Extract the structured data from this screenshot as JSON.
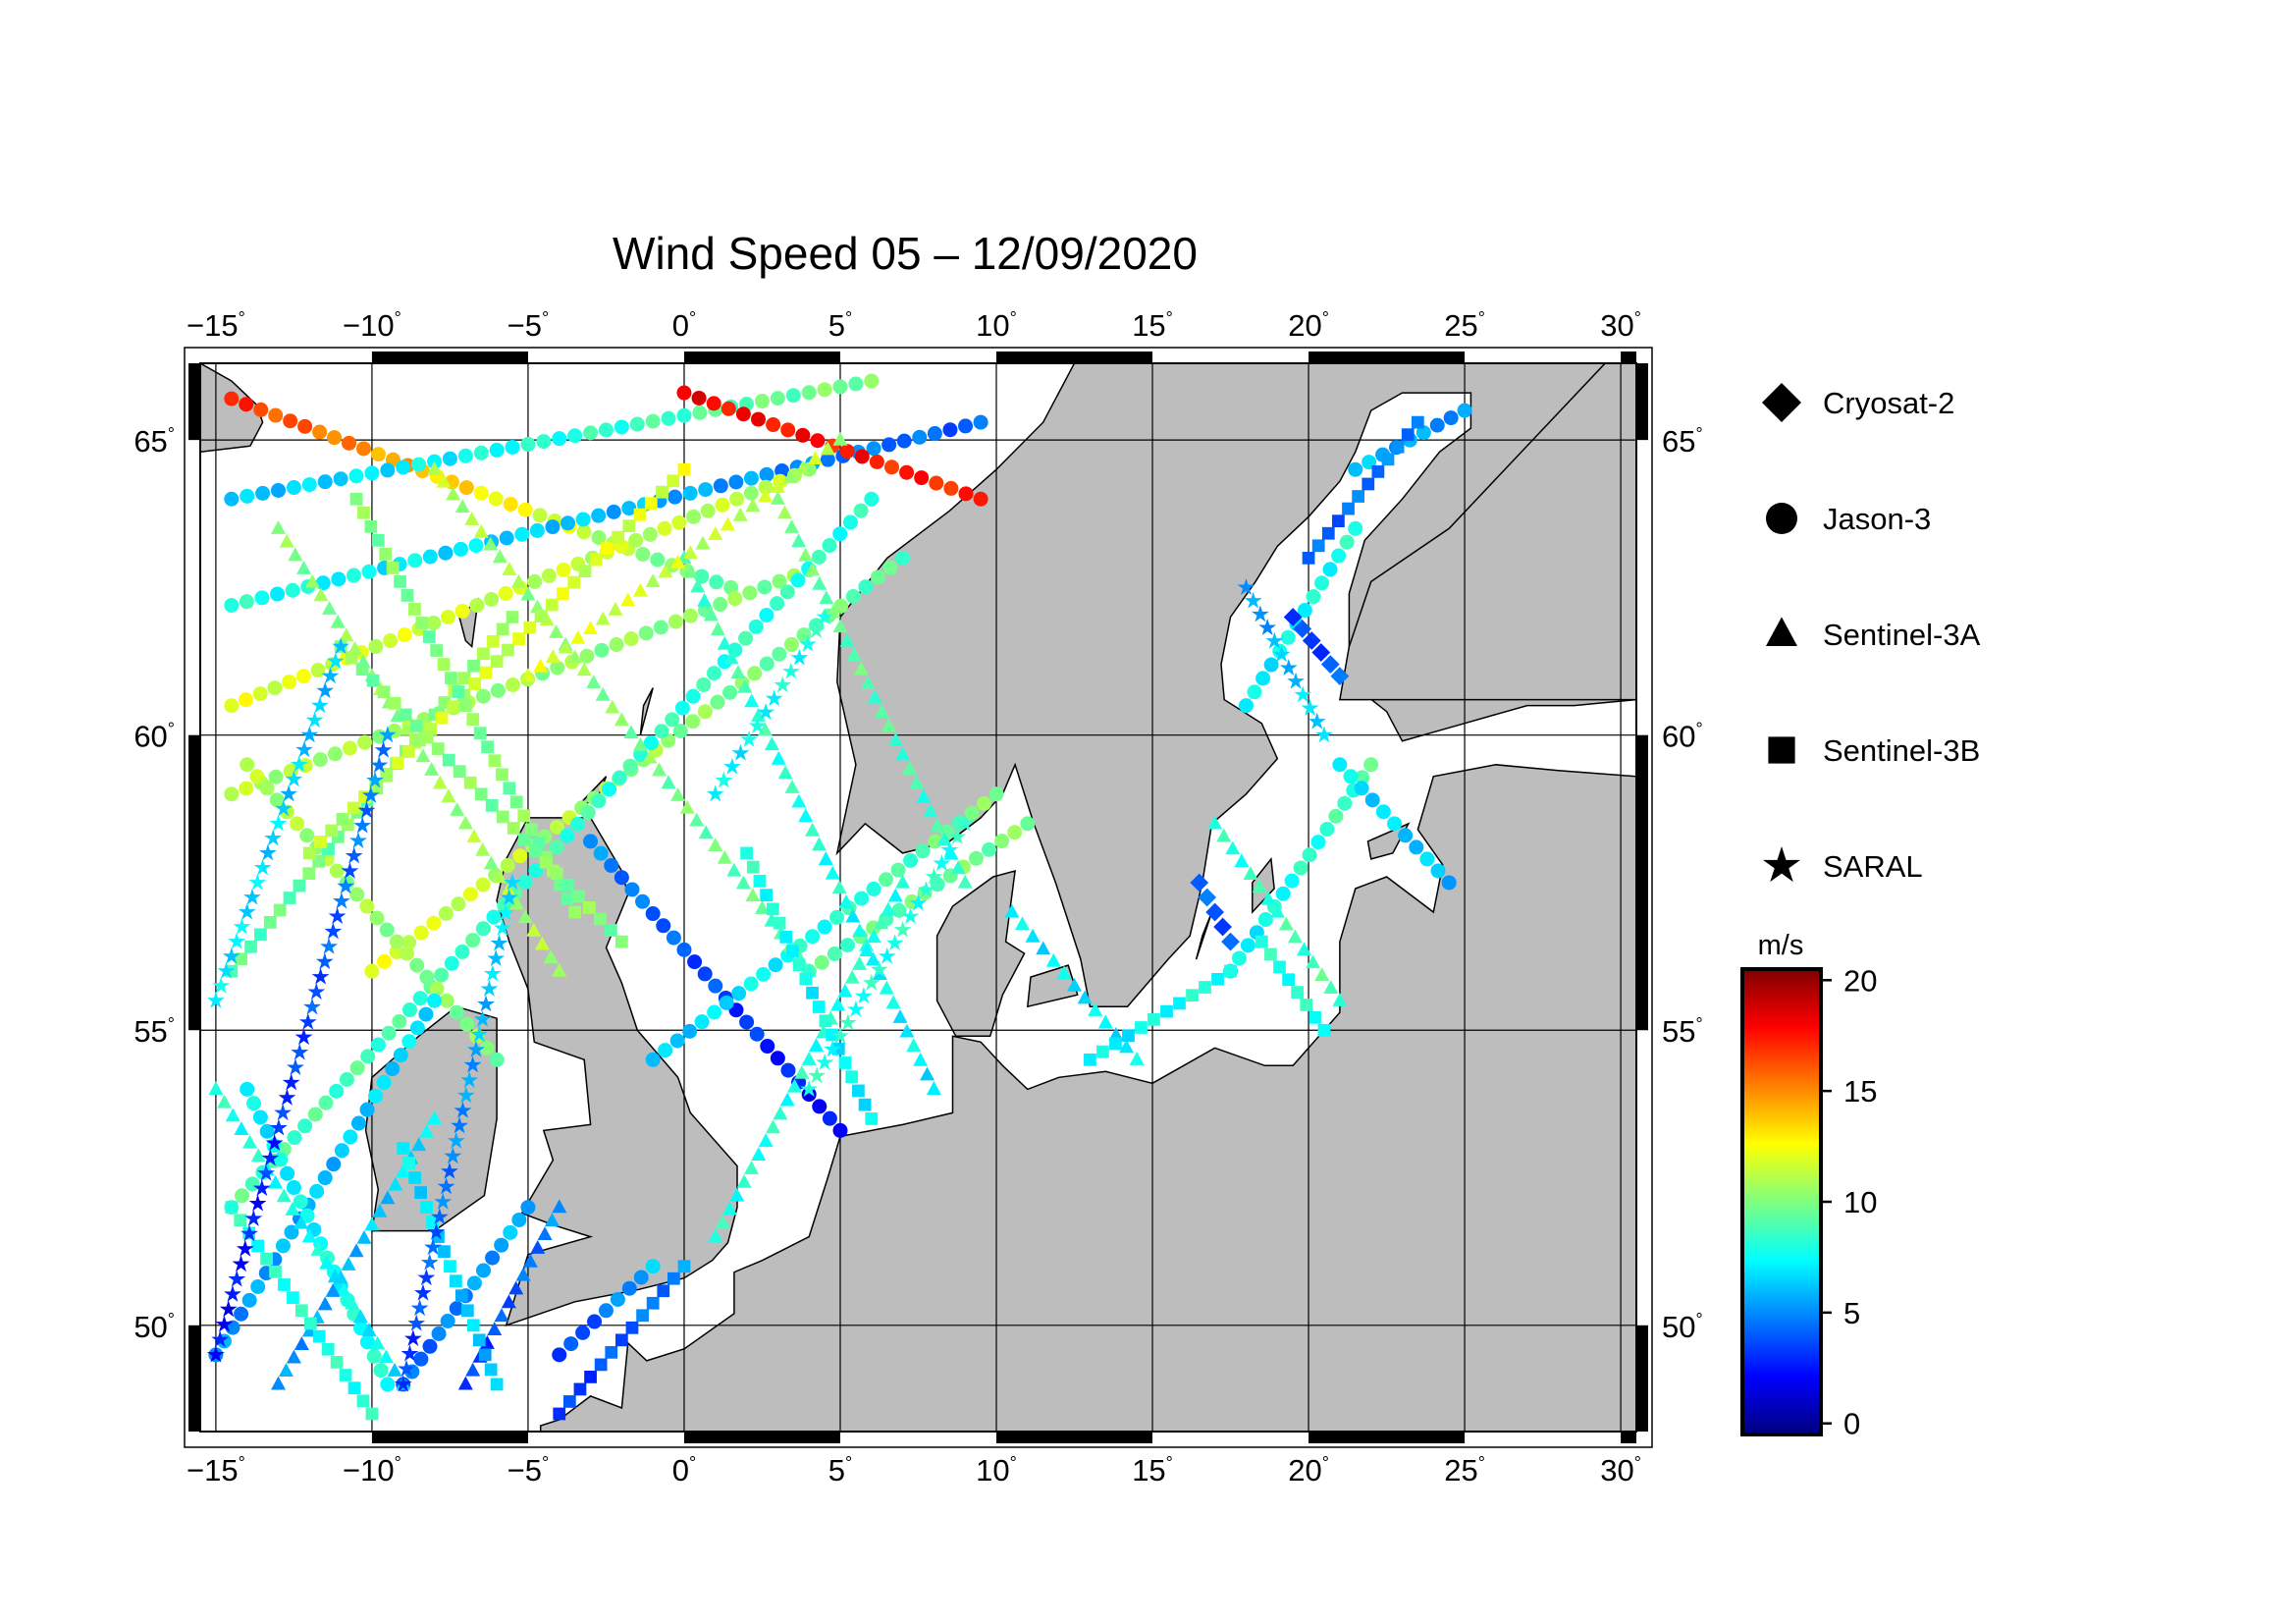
{
  "map": {
    "title": "Wind Speed 05 – 12/09/2020",
    "extent": {
      "lon_min": -15.5,
      "lon_max": 30.5,
      "lat_min": 48.2,
      "lat_max": 66.3
    },
    "lon_ticks": [
      {
        "value": -15,
        "label": "−15"
      },
      {
        "value": -10,
        "label": "−10"
      },
      {
        "value": -5,
        "label": "−5"
      },
      {
        "value": 0,
        "label": "0"
      },
      {
        "value": 5,
        "label": "5"
      },
      {
        "value": 10,
        "label": "10"
      },
      {
        "value": 15,
        "label": "15"
      },
      {
        "value": 20,
        "label": "20"
      },
      {
        "value": 25,
        "label": "25"
      },
      {
        "value": 30,
        "label": "30"
      }
    ],
    "lat_ticks": [
      {
        "value": 50,
        "label": "50"
      },
      {
        "value": 55,
        "label": "55"
      },
      {
        "value": 60,
        "label": "60"
      },
      {
        "value": 65,
        "label": "65"
      }
    ],
    "degree_symbol": "°",
    "colors": {
      "land": "#bdbdbd",
      "sea": "#ffffff",
      "frame": "#000000"
    }
  },
  "legend": {
    "items": [
      {
        "label": "Cryosat-2",
        "symbol": "diamond"
      },
      {
        "label": "Jason-3",
        "symbol": "circle"
      },
      {
        "label": "Sentinel-3A",
        "symbol": "triangle"
      },
      {
        "label": "Sentinel-3B",
        "symbol": "square"
      },
      {
        "label": "SARAL",
        "symbol": "star"
      }
    ]
  },
  "colorbar": {
    "unit": "m/s",
    "min": -0.5,
    "max": 20.5,
    "ticks": [
      {
        "value": 0,
        "label": "0"
      },
      {
        "value": 5,
        "label": "5"
      },
      {
        "value": 10,
        "label": "10"
      },
      {
        "value": 15,
        "label": "15"
      },
      {
        "value": 20,
        "label": "20"
      }
    ],
    "colormap": [
      "#00007f",
      "#0000ff",
      "#007fff",
      "#00ffff",
      "#7fff7f",
      "#ffff00",
      "#ff7f00",
      "#ff0000",
      "#7f0000"
    ]
  },
  "chart_data": {
    "type": "scatter",
    "title": "Wind Speed 05 – 12/09/2020",
    "value_unit": "m/s",
    "tracks": [
      {
        "satellite": "Jason-3",
        "lon": [
          -14.5,
          1.5
        ],
        "lat": [
          65.7,
          62.5
        ],
        "speed": [
          17,
          9
        ]
      },
      {
        "satellite": "Jason-3",
        "lon": [
          -14.5,
          6.0
        ],
        "lat": [
          64.0,
          66.0
        ],
        "speed": [
          6,
          10
        ]
      },
      {
        "satellite": "Jason-3",
        "lon": [
          -14.5,
          9.5
        ],
        "lat": [
          62.2,
          65.3
        ],
        "speed": [
          8,
          4
        ]
      },
      {
        "satellite": "Jason-3",
        "lon": [
          0.0,
          9.5
        ],
        "lat": [
          65.8,
          64.0
        ],
        "speed": [
          18,
          17
        ]
      },
      {
        "satellite": "Jason-3",
        "lon": [
          -14.5,
          4.0
        ],
        "lat": [
          60.5,
          64.5
        ],
        "speed": [
          12,
          11
        ]
      },
      {
        "satellite": "Jason-3",
        "lon": [
          -14.5,
          4.0
        ],
        "lat": [
          59.0,
          62.8
        ],
        "speed": [
          11,
          10
        ]
      },
      {
        "satellite": "Jason-3",
        "lon": [
          -10.0,
          7.0
        ],
        "lat": [
          56.0,
          63.0
        ],
        "speed": [
          12,
          9
        ]
      },
      {
        "satellite": "Jason-3",
        "lon": [
          -14.5,
          6.0
        ],
        "lat": [
          52.0,
          64.0
        ],
        "speed": [
          9,
          8
        ]
      },
      {
        "satellite": "Jason-3",
        "lon": [
          -14.0,
          -6.0
        ],
        "lat": [
          59.5,
          54.5
        ],
        "speed": [
          11,
          10
        ]
      },
      {
        "satellite": "Jason-3",
        "lon": [
          -3.0,
          5.0
        ],
        "lat": [
          58.2,
          53.3
        ],
        "speed": [
          5,
          2
        ]
      },
      {
        "satellite": "Jason-3",
        "lon": [
          -1.0,
          10.0
        ],
        "lat": [
          54.5,
          59.0
        ],
        "speed": [
          6,
          10
        ]
      },
      {
        "satellite": "Jason-3",
        "lon": [
          4.0,
          11.0
        ],
        "lat": [
          56.0,
          58.5
        ],
        "speed": [
          9,
          10
        ]
      },
      {
        "satellite": "Jason-3",
        "lon": [
          -15.0,
          -8.0
        ],
        "lat": [
          49.5,
          55.5
        ],
        "speed": [
          5,
          7
        ]
      },
      {
        "satellite": "Jason-3",
        "lon": [
          -14.0,
          -9.5
        ],
        "lat": [
          54.0,
          49.0
        ],
        "speed": [
          7,
          8
        ]
      },
      {
        "satellite": "Jason-3",
        "lon": [
          -9.0,
          -5.0
        ],
        "lat": [
          49.0,
          52.0
        ],
        "speed": [
          4,
          6
        ]
      },
      {
        "satellite": "Jason-3",
        "lon": [
          -4.0,
          -1.0
        ],
        "lat": [
          49.5,
          51.0
        ],
        "speed": [
          3,
          6
        ]
      },
      {
        "satellite": "Jason-3",
        "lon": [
          18.0,
          21.5
        ],
        "lat": [
          60.5,
          63.5
        ],
        "speed": [
          7,
          8
        ]
      },
      {
        "satellite": "Jason-3",
        "lon": [
          21.5,
          25.0
        ],
        "lat": [
          64.5,
          65.5
        ],
        "speed": [
          6,
          5
        ]
      },
      {
        "satellite": "Jason-3",
        "lon": [
          17.5,
          22.0
        ],
        "lat": [
          56.0,
          59.5
        ],
        "speed": [
          7,
          9
        ]
      },
      {
        "satellite": "Jason-3",
        "lon": [
          21.0,
          24.5
        ],
        "lat": [
          59.5,
          57.5
        ],
        "speed": [
          7,
          6
        ]
      },
      {
        "satellite": "Sentinel-3A",
        "lon": [
          -15.0,
          -9.0
        ],
        "lat": [
          54.0,
          49.0
        ],
        "speed": [
          8,
          7
        ]
      },
      {
        "satellite": "Sentinel-3A",
        "lon": [
          -13.0,
          -4.0
        ],
        "lat": [
          63.5,
          56.0
        ],
        "speed": [
          10,
          11
        ]
      },
      {
        "satellite": "Sentinel-3A",
        "lon": [
          -8.0,
          4.0
        ],
        "lat": [
          64.5,
          56.0
        ],
        "speed": [
          11,
          9
        ]
      },
      {
        "satellite": "Sentinel-3A",
        "lon": [
          0.0,
          8.0
        ],
        "lat": [
          63.0,
          54.0
        ],
        "speed": [
          9,
          7
        ]
      },
      {
        "satellite": "Sentinel-3A",
        "lon": [
          3.0,
          9.0
        ],
        "lat": [
          64.0,
          57.5
        ],
        "speed": [
          10,
          8
        ]
      },
      {
        "satellite": "Sentinel-3A",
        "lon": [
          -5.0,
          5.0
        ],
        "lat": [
          61.0,
          65.0
        ],
        "speed": [
          12,
          11
        ]
      },
      {
        "satellite": "Sentinel-3A",
        "lon": [
          1.0,
          7.0
        ],
        "lat": [
          51.5,
          57.5
        ],
        "speed": [
          8,
          8
        ]
      },
      {
        "satellite": "Sentinel-3A",
        "lon": [
          -13.0,
          -8.0
        ],
        "lat": [
          49.0,
          53.5
        ],
        "speed": [
          5,
          7
        ]
      },
      {
        "satellite": "Sentinel-3A",
        "lon": [
          -7.0,
          -4.0
        ],
        "lat": [
          49.0,
          52.0
        ],
        "speed": [
          3,
          5
        ]
      },
      {
        "satellite": "Sentinel-3A",
        "lon": [
          10.5,
          14.5
        ],
        "lat": [
          57.0,
          54.5
        ],
        "speed": [
          7,
          7
        ]
      },
      {
        "satellite": "Sentinel-3A",
        "lon": [
          17.0,
          21.0
        ],
        "lat": [
          58.5,
          55.5
        ],
        "speed": [
          8,
          9
        ]
      },
      {
        "satellite": "Sentinel-3B",
        "lon": [
          -14.5,
          -5.5
        ],
        "lat": [
          56.0,
          62.0
        ],
        "speed": [
          9,
          11
        ]
      },
      {
        "satellite": "Sentinel-3B",
        "lon": [
          -12.0,
          0.0
        ],
        "lat": [
          58.0,
          64.5
        ],
        "speed": [
          11,
          12
        ]
      },
      {
        "satellite": "Sentinel-3B",
        "lon": [
          -10.5,
          -3.5
        ],
        "lat": [
          64.0,
          57.0
        ],
        "speed": [
          10,
          10
        ]
      },
      {
        "satellite": "Sentinel-3B",
        "lon": [
          -14.5,
          -10.0
        ],
        "lat": [
          52.0,
          48.5
        ],
        "speed": [
          8,
          8
        ]
      },
      {
        "satellite": "Sentinel-3B",
        "lon": [
          -9.0,
          -6.0
        ],
        "lat": [
          53.0,
          49.0
        ],
        "speed": [
          7,
          6
        ]
      },
      {
        "satellite": "Sentinel-3B",
        "lon": [
          -4.0,
          0.0
        ],
        "lat": [
          48.5,
          51.0
        ],
        "speed": [
          3,
          5
        ]
      },
      {
        "satellite": "Sentinel-3B",
        "lon": [
          2.0,
          6.0
        ],
        "lat": [
          58.0,
          53.5
        ],
        "speed": [
          8,
          7
        ]
      },
      {
        "satellite": "Sentinel-3B",
        "lon": [
          13.0,
          17.5
        ],
        "lat": [
          54.5,
          56.0
        ],
        "speed": [
          7,
          8
        ]
      },
      {
        "satellite": "Sentinel-3B",
        "lon": [
          18.5,
          20.5
        ],
        "lat": [
          56.5,
          55.0
        ],
        "speed": [
          8,
          8
        ]
      },
      {
        "satellite": "Sentinel-3B",
        "lon": [
          20.0,
          23.5
        ],
        "lat": [
          63.0,
          65.3
        ],
        "speed": [
          4,
          5
        ]
      },
      {
        "satellite": "Sentinel-3B",
        "lon": [
          -11.0,
          -2.0
        ],
        "lat": [
          61.5,
          56.5
        ],
        "speed": [
          10,
          10
        ]
      },
      {
        "satellite": "SARAL",
        "lon": [
          -15.0,
          -9.5
        ],
        "lat": [
          49.5,
          60.0
        ],
        "speed": [
          2,
          5
        ]
      },
      {
        "satellite": "SARAL",
        "lon": [
          -9.0,
          -5.5
        ],
        "lat": [
          49.0,
          57.5
        ],
        "speed": [
          3,
          7
        ]
      },
      {
        "satellite": "SARAL",
        "lon": [
          -15.0,
          -11.0
        ],
        "lat": [
          55.5,
          61.5
        ],
        "speed": [
          7,
          6
        ]
      },
      {
        "satellite": "SARAL",
        "lon": [
          4.0,
          9.0
        ],
        "lat": [
          54.0,
          58.5
        ],
        "speed": [
          8,
          8
        ]
      },
      {
        "satellite": "SARAL",
        "lon": [
          1.0,
          4.5
        ],
        "lat": [
          59.0,
          62.0
        ],
        "speed": [
          7,
          8
        ]
      },
      {
        "satellite": "SARAL",
        "lon": [
          18.0,
          20.5
        ],
        "lat": [
          62.5,
          60.0
        ],
        "speed": [
          5,
          7
        ]
      },
      {
        "satellite": "Cryosat-2",
        "lon": [
          16.5,
          17.5
        ],
        "lat": [
          57.5,
          56.5
        ],
        "speed": [
          4,
          4
        ]
      },
      {
        "satellite": "Cryosat-2",
        "lon": [
          19.5,
          21.0
        ],
        "lat": [
          62.0,
          61.0
        ],
        "speed": [
          3,
          4
        ]
      }
    ]
  }
}
